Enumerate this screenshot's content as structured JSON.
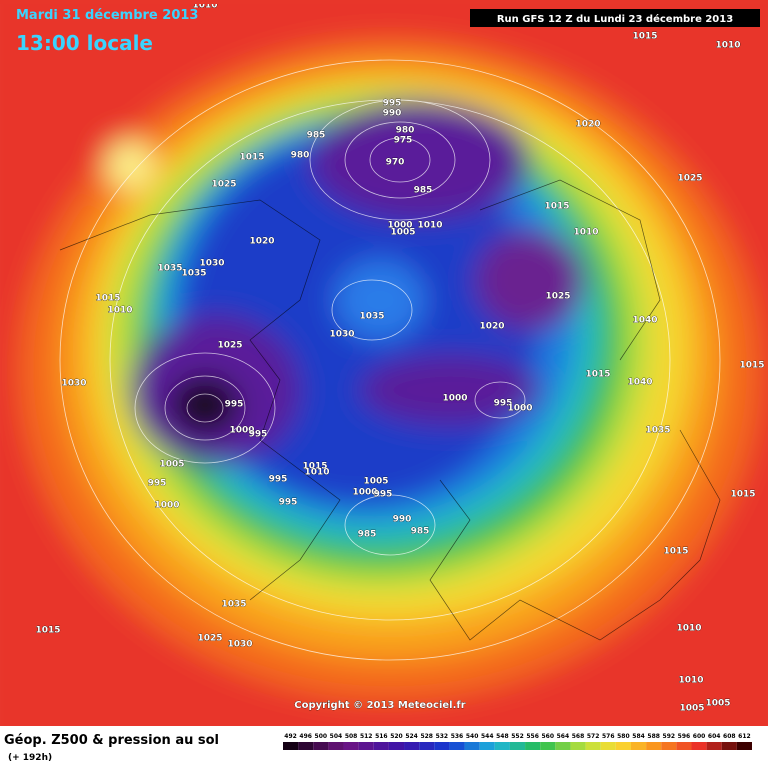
{
  "header": {
    "date": "Mardi 31 décembre 2013",
    "time": "13:00 locale",
    "run": "Run GFS 12 Z du Lundi 23 décembre 2013"
  },
  "footer": {
    "title": "Géop. Z500 & pression au sol",
    "lead": "(+ 192h)",
    "copyright": "Copyright © 2013 Meteociel.fr"
  },
  "colorbar": {
    "levels": [
      492,
      496,
      500,
      504,
      508,
      512,
      516,
      520,
      524,
      528,
      532,
      536,
      540,
      544,
      548,
      552,
      556,
      560,
      564,
      568,
      572,
      576,
      580,
      584,
      588,
      592,
      596,
      600,
      604,
      608,
      612
    ]
  },
  "pressure_labels": [
    1010,
    1015,
    1010,
    995,
    990,
    980,
    975,
    985,
    1020,
    980,
    970,
    1015,
    1025,
    1025,
    985,
    1015,
    1000,
    1005,
    1010,
    1010,
    1020,
    1030,
    1035,
    1035,
    1025,
    1015,
    1010,
    1035,
    1040,
    1020,
    1030,
    1025,
    1015,
    1015,
    1030,
    1040,
    1000,
    995,
    1000,
    995,
    1000,
    995,
    1035,
    1015,
    1010,
    1005,
    995,
    1005,
    995,
    1000,
    995,
    995,
    1015,
    1000,
    990,
    985,
    985,
    1015,
    1035,
    1015,
    1010,
    1025,
    1030,
    1010,
    1005,
    1005
  ]
}
